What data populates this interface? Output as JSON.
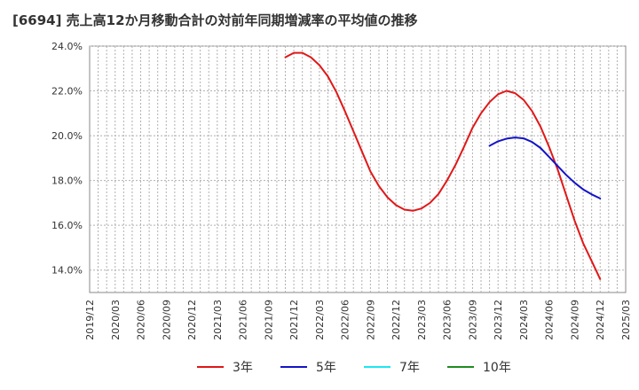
{
  "title": "[6694]  売上高12か月移動合計の対前年同期増減率の平均値の推移",
  "chart_data": {
    "type": "line",
    "title": "[6694]  売上高12か月移動合計の対前年同期増減率の平均値の推移",
    "x_categories": [
      "2019/12",
      "2020/03",
      "2020/06",
      "2020/09",
      "2020/12",
      "2021/03",
      "2021/06",
      "2021/09",
      "2021/12",
      "2022/03",
      "2022/06",
      "2022/09",
      "2022/12",
      "2023/03",
      "2023/06",
      "2023/09",
      "2023/12",
      "2024/03",
      "2024/06",
      "2024/09",
      "2024/12",
      "2025/03"
    ],
    "ylim": [
      13.0,
      24.0
    ],
    "yticks": [
      14.0,
      16.0,
      18.0,
      20.0,
      22.0,
      24.0
    ],
    "ytick_labels": [
      "14.0%",
      "16.0%",
      "18.0%",
      "20.0%",
      "22.0%",
      "24.0%"
    ],
    "grid": true,
    "legend_position": "bottom",
    "series": [
      {
        "name": "3年",
        "color": "#e01818",
        "points": [
          [
            "2021/11",
            23.5
          ],
          [
            "2021/12",
            23.7
          ],
          [
            "2022/01",
            23.7
          ],
          [
            "2022/02",
            23.5
          ],
          [
            "2022/03",
            23.15
          ],
          [
            "2022/04",
            22.65
          ],
          [
            "2022/05",
            21.95
          ],
          [
            "2022/06",
            21.1
          ],
          [
            "2022/07",
            20.2
          ],
          [
            "2022/08",
            19.3
          ],
          [
            "2022/09",
            18.4
          ],
          [
            "2022/10",
            17.75
          ],
          [
            "2022/11",
            17.25
          ],
          [
            "2022/12",
            16.9
          ],
          [
            "2023/01",
            16.7
          ],
          [
            "2023/02",
            16.65
          ],
          [
            "2023/03",
            16.75
          ],
          [
            "2023/04",
            17.0
          ],
          [
            "2023/05",
            17.4
          ],
          [
            "2023/06",
            18.0
          ],
          [
            "2023/07",
            18.7
          ],
          [
            "2023/08",
            19.5
          ],
          [
            "2023/09",
            20.35
          ],
          [
            "2023/10",
            21.0
          ],
          [
            "2023/11",
            21.5
          ],
          [
            "2023/12",
            21.85
          ],
          [
            "2024/01",
            22.0
          ],
          [
            "2024/02",
            21.9
          ],
          [
            "2024/03",
            21.6
          ],
          [
            "2024/04",
            21.1
          ],
          [
            "2024/05",
            20.4
          ],
          [
            "2024/06",
            19.5
          ],
          [
            "2024/07",
            18.5
          ],
          [
            "2024/08",
            17.35
          ],
          [
            "2024/09",
            16.2
          ],
          [
            "2024/10",
            15.2
          ],
          [
            "2024/11",
            14.4
          ],
          [
            "2024/12",
            13.6
          ]
        ]
      },
      {
        "name": "5年",
        "color": "#1414c8",
        "points": [
          [
            "2023/11",
            19.55
          ],
          [
            "2023/12",
            19.75
          ],
          [
            "2024/01",
            19.87
          ],
          [
            "2024/02",
            19.92
          ],
          [
            "2024/03",
            19.88
          ],
          [
            "2024/04",
            19.72
          ],
          [
            "2024/05",
            19.45
          ],
          [
            "2024/06",
            19.05
          ],
          [
            "2024/07",
            18.65
          ],
          [
            "2024/08",
            18.25
          ],
          [
            "2024/09",
            17.9
          ],
          [
            "2024/10",
            17.6
          ],
          [
            "2024/11",
            17.38
          ],
          [
            "2024/12",
            17.2
          ]
        ]
      },
      {
        "name": "7年",
        "color": "#1ee6f0",
        "points": []
      },
      {
        "name": "10年",
        "color": "#1e8c1e",
        "points": []
      }
    ]
  }
}
